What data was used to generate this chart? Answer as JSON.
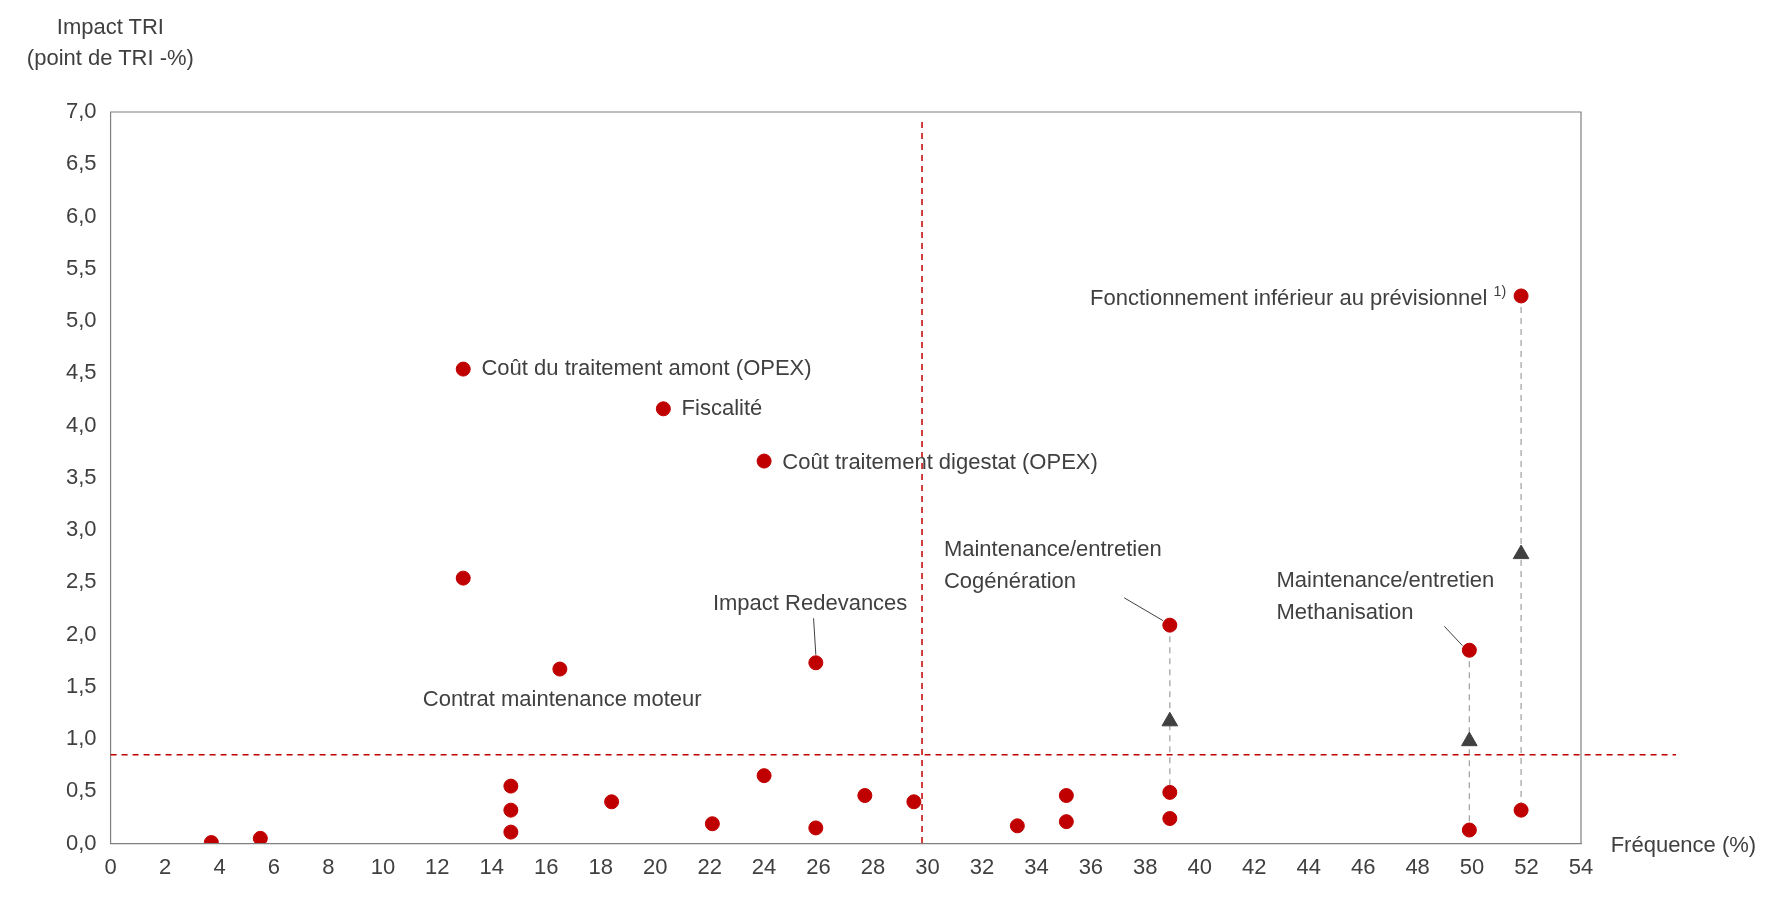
{
  "chart_data": {
    "type": "scatter",
    "ylabel": "Impact TRI\n(point de TRI -%)",
    "xlabel": "Fréquence (%)",
    "xlim": [
      0,
      54
    ],
    "xticks": [
      0,
      2,
      4,
      6,
      8,
      10,
      12,
      14,
      16,
      18,
      20,
      22,
      24,
      26,
      28,
      30,
      32,
      34,
      36,
      38,
      40,
      42,
      44,
      46,
      48,
      50,
      52,
      54
    ],
    "ylim": [
      0,
      7
    ],
    "yticks": [
      {
        "value": 0,
        "label": "0,0"
      },
      {
        "value": 0.5,
        "label": "0,5"
      },
      {
        "value": 1,
        "label": "1,0"
      },
      {
        "value": 1.5,
        "label": "1,5"
      },
      {
        "value": 2,
        "label": "2,0"
      },
      {
        "value": 2.5,
        "label": "2,5"
      },
      {
        "value": 3,
        "label": "3,0"
      },
      {
        "value": 3.5,
        "label": "3,5"
      },
      {
        "value": 4,
        "label": "4,0"
      },
      {
        "value": 4.5,
        "label": "4,5"
      },
      {
        "value": 5,
        "label": "5,0"
      },
      {
        "value": 5.5,
        "label": "5,5"
      },
      {
        "value": 6,
        "label": "6,0"
      },
      {
        "value": 6.5,
        "label": "6,5"
      },
      {
        "value": 7,
        "label": "7,0"
      }
    ],
    "grid": false,
    "legend": false,
    "series": [
      {
        "type": "line",
        "color": "#a6a6a6",
        "line_style": "dashed",
        "marker": "none",
        "x": [
          38.9,
          38.9
        ],
        "values": [
          2.09,
          0.49
        ]
      },
      {
        "type": "line",
        "color": "#a6a6a6",
        "line_style": "dashed",
        "marker": "none",
        "x": [
          49.9,
          49.9
        ],
        "values": [
          1.85,
          0.13
        ]
      },
      {
        "type": "line",
        "color": "#a6a6a6",
        "line_style": "dashed",
        "marker": "none",
        "x": [
          51.8,
          51.8
        ],
        "values": [
          5.24,
          0.32
        ]
      },
      {
        "color": "#c00000",
        "marker": "circle",
        "x": [
          3.7,
          5.5,
          12.95,
          12.95,
          14.7,
          14.7,
          14.7,
          16.5,
          18.4,
          20.3,
          22.1,
          24.0,
          24.0,
          25.9,
          25.9,
          27.7,
          29.5,
          33.3,
          35.1,
          35.1,
          38.9,
          38.9,
          38.9,
          49.9,
          49.9,
          51.8,
          51.8
        ],
        "values": [
          0.01,
          0.05,
          4.54,
          2.54,
          0.55,
          0.32,
          0.11,
          1.67,
          0.4,
          4.16,
          0.19,
          3.66,
          0.65,
          1.73,
          0.15,
          0.46,
          0.4,
          0.17,
          0.46,
          0.21,
          2.09,
          0.49,
          0.24,
          1.85,
          0.13,
          5.24,
          0.32
        ]
      },
      {
        "color": "#404040",
        "marker": "triangle",
        "x": [
          38.9,
          49.9,
          51.8
        ],
        "values": [
          1.17,
          0.98,
          2.77
        ]
      }
    ],
    "ref_lines": [
      {
        "axis": "x",
        "value": 29.8,
        "color": "#c00000",
        "line_style": "dashed"
      },
      {
        "axis": "y",
        "value": 0.85,
        "color": "#c00000",
        "line_style": "dashed"
      }
    ],
    "annotations": [
      {
        "text": "Coût du traitement amont (OPEX)",
        "x": 12.95,
        "y": 4.54
      },
      {
        "text": "Fiscalité",
        "x": 20.3,
        "y": 4.16
      },
      {
        "text": "Coût traitement digestat (OPEX)",
        "x": 24.0,
        "y": 3.66
      },
      {
        "text": "Contrat maintenance moteur",
        "x": 16.5,
        "y": 1.67
      },
      {
        "text": "Impact Redevances",
        "x": 25.9,
        "y": 1.73
      },
      {
        "text": "Maintenance/entretien\nCogénération",
        "x": 38.9,
        "y": 2.09
      },
      {
        "text": "Maintenance/entretien\nMethanisation",
        "x": 49.9,
        "y": 1.85
      },
      {
        "text": "Fonctionnement inférieur au prévisionnel $^{1)}$",
        "x": 51.8,
        "y": 5.24
      }
    ]
  }
}
